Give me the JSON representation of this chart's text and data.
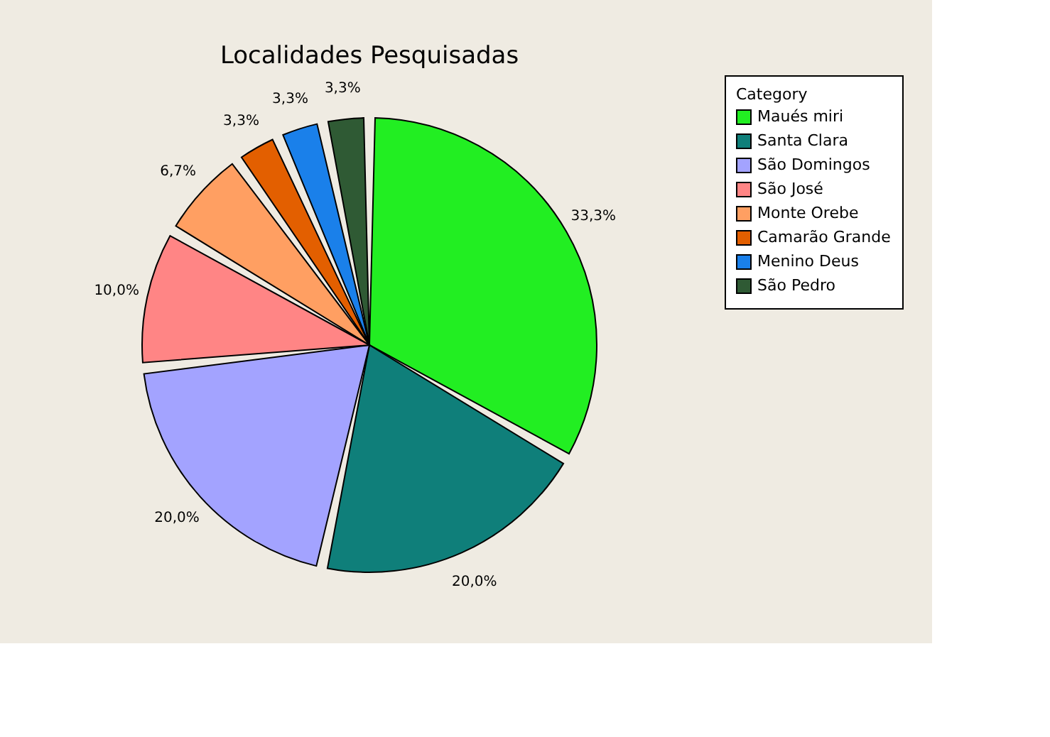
{
  "chart_data": {
    "type": "pie",
    "title": "Localidades Pesquisadas",
    "legend_title": "Category",
    "legend": "right",
    "categories": [
      "Maués miri",
      "Santa Clara",
      "São Domingos",
      "São José",
      "Monte Orebe",
      "Camarão Grande",
      "Menino Deus",
      "São Pedro"
    ],
    "values": [
      33.3,
      20.0,
      20.0,
      10.0,
      6.7,
      3.3,
      3.3,
      3.3
    ],
    "value_labels": [
      "33,3%",
      "20,0%",
      "20,0%",
      "10,0%",
      "6,7%",
      "3,3%",
      "3,3%",
      "3,3%"
    ],
    "colors": [
      "#22ee22",
      "#0f7f7a",
      "#a3a3ff",
      "#ff8585",
      "#ff9f62",
      "#e35f00",
      "#1a80ea",
      "#2f5a34"
    ]
  }
}
